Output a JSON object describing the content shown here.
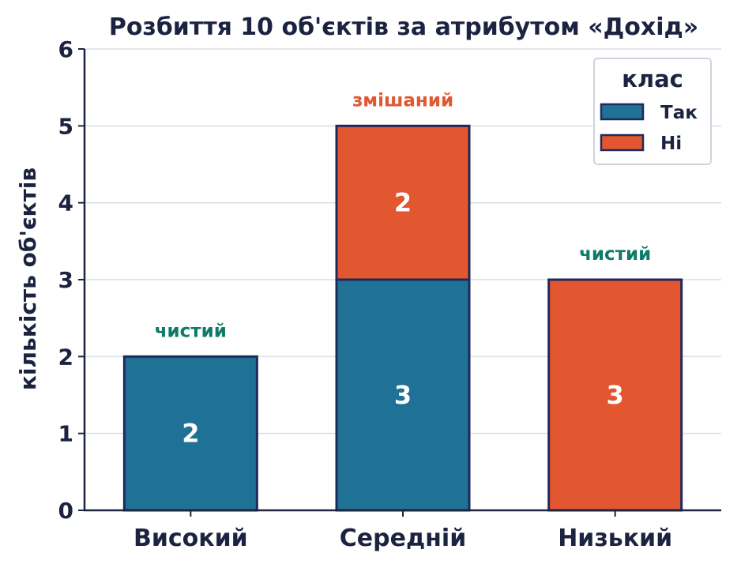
{
  "chart_data": {
    "type": "bar",
    "stacked": true,
    "title": "Розбиття 10 об'єктів за атрибутом «Дохід»",
    "xlabel": "",
    "ylabel": "кількість об'єктів",
    "categories": [
      "Високий",
      "Середній",
      "Низький"
    ],
    "series": [
      {
        "name": "Так",
        "color": "#1f7196",
        "values": [
          2,
          3,
          0
        ]
      },
      {
        "name": "Ні",
        "color": "#e2572f",
        "values": [
          0,
          2,
          3
        ]
      }
    ],
    "annotations": [
      {
        "category": "Високий",
        "text": "чистий",
        "color": "#0e7a6a"
      },
      {
        "category": "Середній",
        "text": "змішаний",
        "color": "#e2572f"
      },
      {
        "category": "Низький",
        "text": "чистий",
        "color": "#0e7a6a"
      }
    ],
    "ylim": [
      0,
      6
    ],
    "yticks": [
      "0",
      "1",
      "2",
      "3",
      "4",
      "5",
      "6"
    ],
    "grid": "horizontal",
    "legend": {
      "title": "клас",
      "position": "top-right"
    },
    "colors": {
      "edge": "#1f2a5c",
      "axis": "#1b2340",
      "grid": "#d8dde8"
    }
  }
}
